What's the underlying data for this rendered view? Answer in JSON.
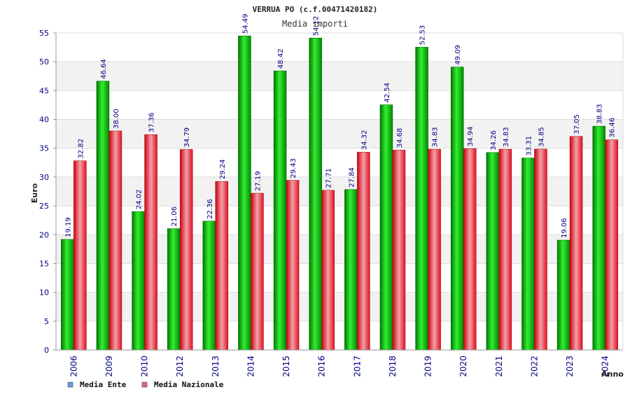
{
  "chart_data": {
    "type": "bar",
    "title": "VERRUA PO (c.f.00471420182)",
    "subtitle": "Media importi",
    "xlabel": "Anno",
    "ylabel": "Euro",
    "ylim": [
      0,
      55
    ],
    "yticks": [
      "0",
      "5",
      "10",
      "15",
      "20",
      "25",
      "30",
      "35",
      "40",
      "45",
      "50",
      "55"
    ],
    "grid": true,
    "legend_position": "bottom-left",
    "categories": [
      "2006",
      "2009",
      "2010",
      "2012",
      "2013",
      "2014",
      "2015",
      "2016",
      "2017",
      "2018",
      "2019",
      "2020",
      "2021",
      "2022",
      "2023",
      "2024"
    ],
    "series": [
      {
        "name": "Media Ente",
        "color": "#00cc00",
        "legend_color": "#6699ee",
        "values": [
          19.19,
          46.64,
          24.02,
          21.06,
          22.36,
          54.49,
          48.42,
          54.12,
          27.84,
          42.54,
          52.53,
          49.09,
          34.26,
          33.31,
          19.06,
          38.83
        ],
        "labels": [
          "19.19",
          "46.64",
          "24.02",
          "21.06",
          "22.36",
          "54.49",
          "48.42",
          "54.12",
          "27.84",
          "42.54",
          "52.53",
          "49.09",
          "34.26",
          "33.31",
          "19.06",
          "38.83"
        ]
      },
      {
        "name": "Media Nazionale",
        "color": "#ee2233",
        "legend_color": "#dd6688",
        "values": [
          32.82,
          38.0,
          37.36,
          34.79,
          29.24,
          27.19,
          29.43,
          27.71,
          34.32,
          34.68,
          34.83,
          34.94,
          34.83,
          34.85,
          37.05,
          36.46
        ],
        "labels": [
          "32.82",
          "38.00",
          "37.36",
          "34.79",
          "29.24",
          "27.19",
          "29.43",
          "27.71",
          "34.32",
          "34.68",
          "34.83",
          "34.94",
          "34.83",
          "34.85",
          "37.05",
          "36.46"
        ]
      }
    ]
  }
}
